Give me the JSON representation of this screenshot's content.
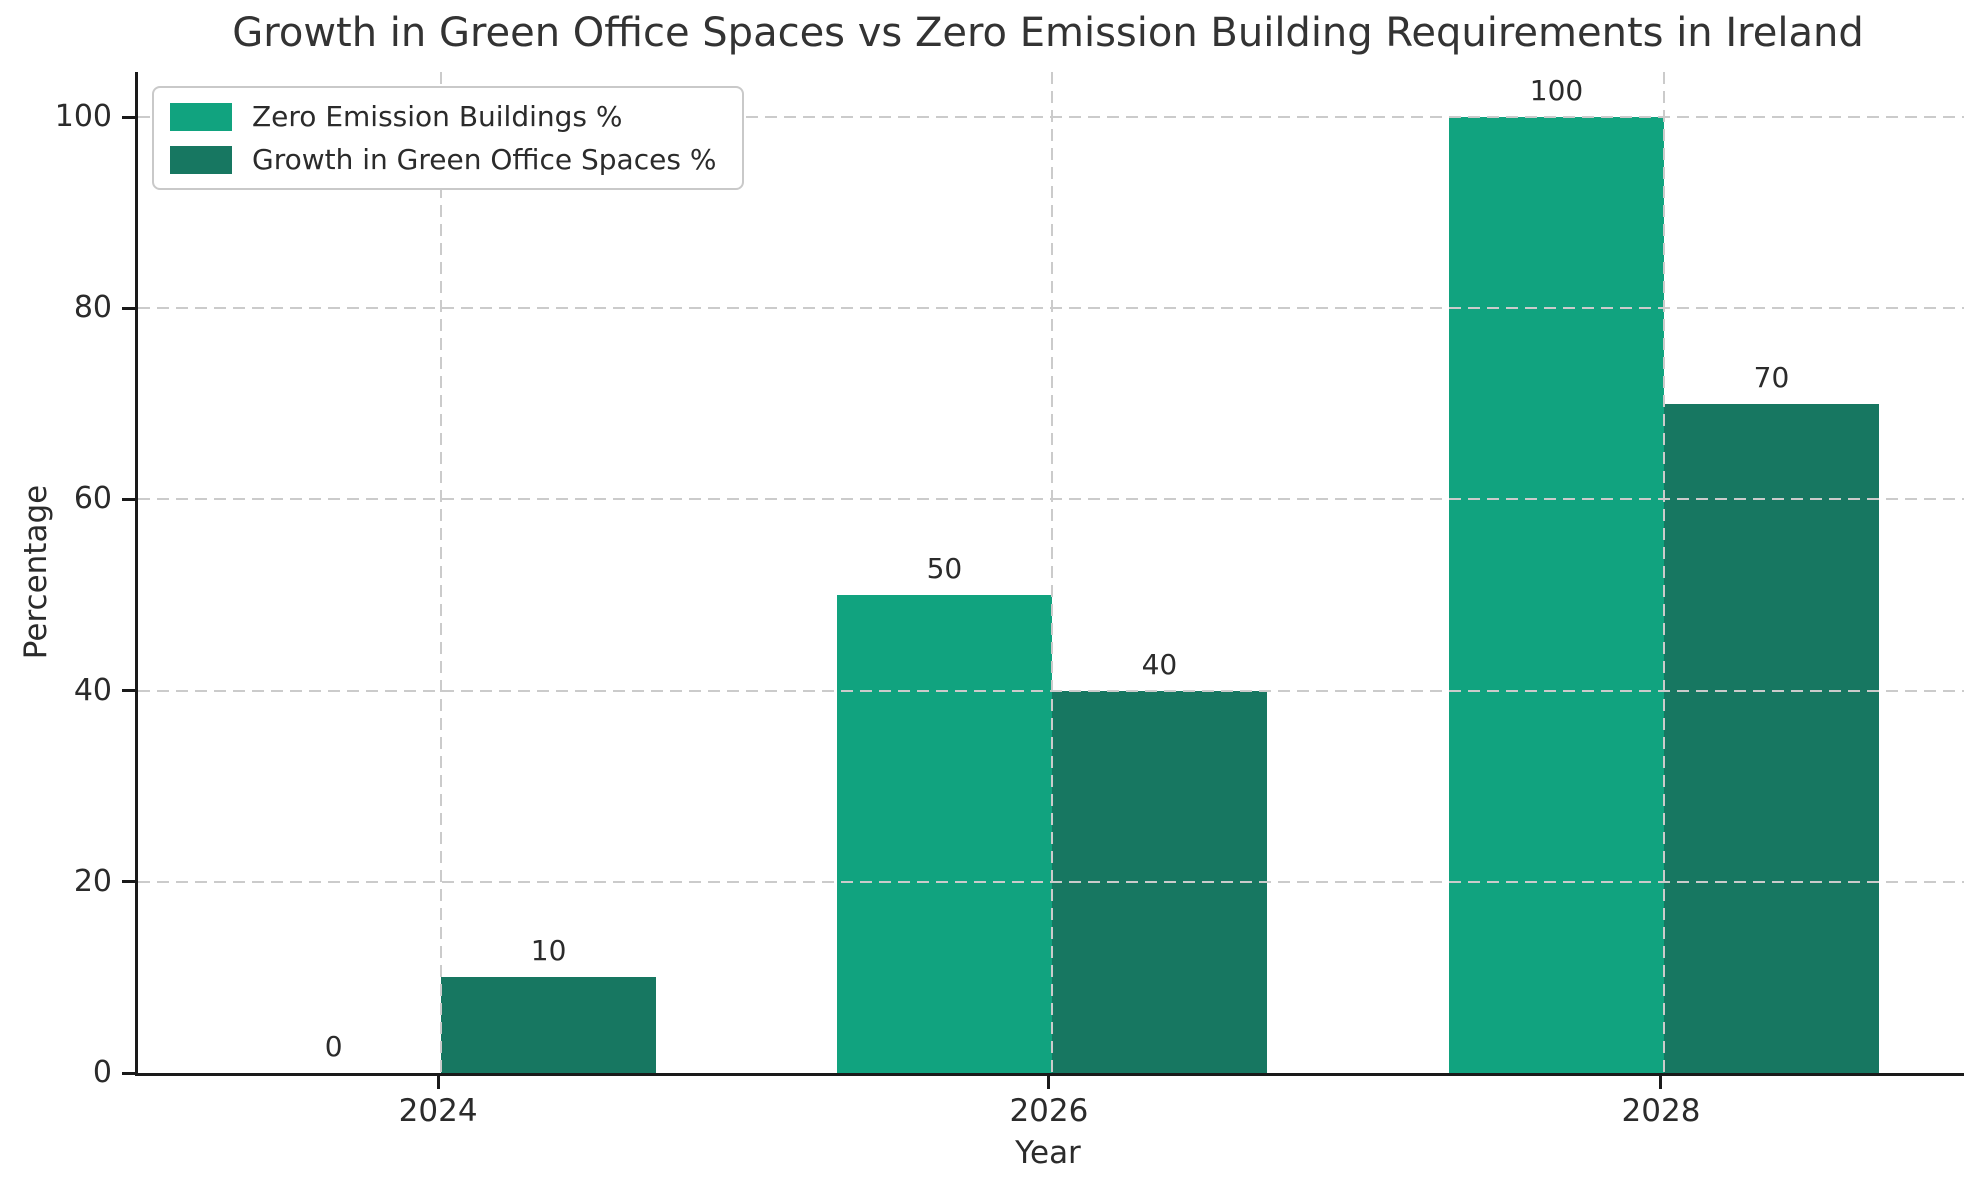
{
  "chart_data": {
    "type": "bar",
    "title": "Growth in Green Office Spaces vs Zero Emission Building Requirements in Ireland",
    "xlabel": "Year",
    "ylabel": "Percentage",
    "categories": [
      "2024",
      "2026",
      "2028"
    ],
    "series": [
      {
        "name": "Zero Emission Buildings %",
        "color": "#11A37F",
        "values": [
          0,
          50,
          100
        ]
      },
      {
        "name": "Growth in Green Office Spaces %",
        "color": "#177761",
        "values": [
          10,
          40,
          70
        ]
      }
    ],
    "bar_value_labels": [
      [
        0,
        50,
        100
      ],
      [
        10,
        40,
        70
      ]
    ],
    "yticks": [
      0,
      20,
      40,
      60,
      80,
      100
    ],
    "ylim": [
      0,
      104.7
    ],
    "grid": "dashed, drawn over bars",
    "legend_position": "upper-left"
  },
  "colors": {
    "background": "#ffffff",
    "grid": "#cbcbcb",
    "spine": "#1a1a1a",
    "text": "#2b2b2b",
    "title_text": "#333333"
  }
}
